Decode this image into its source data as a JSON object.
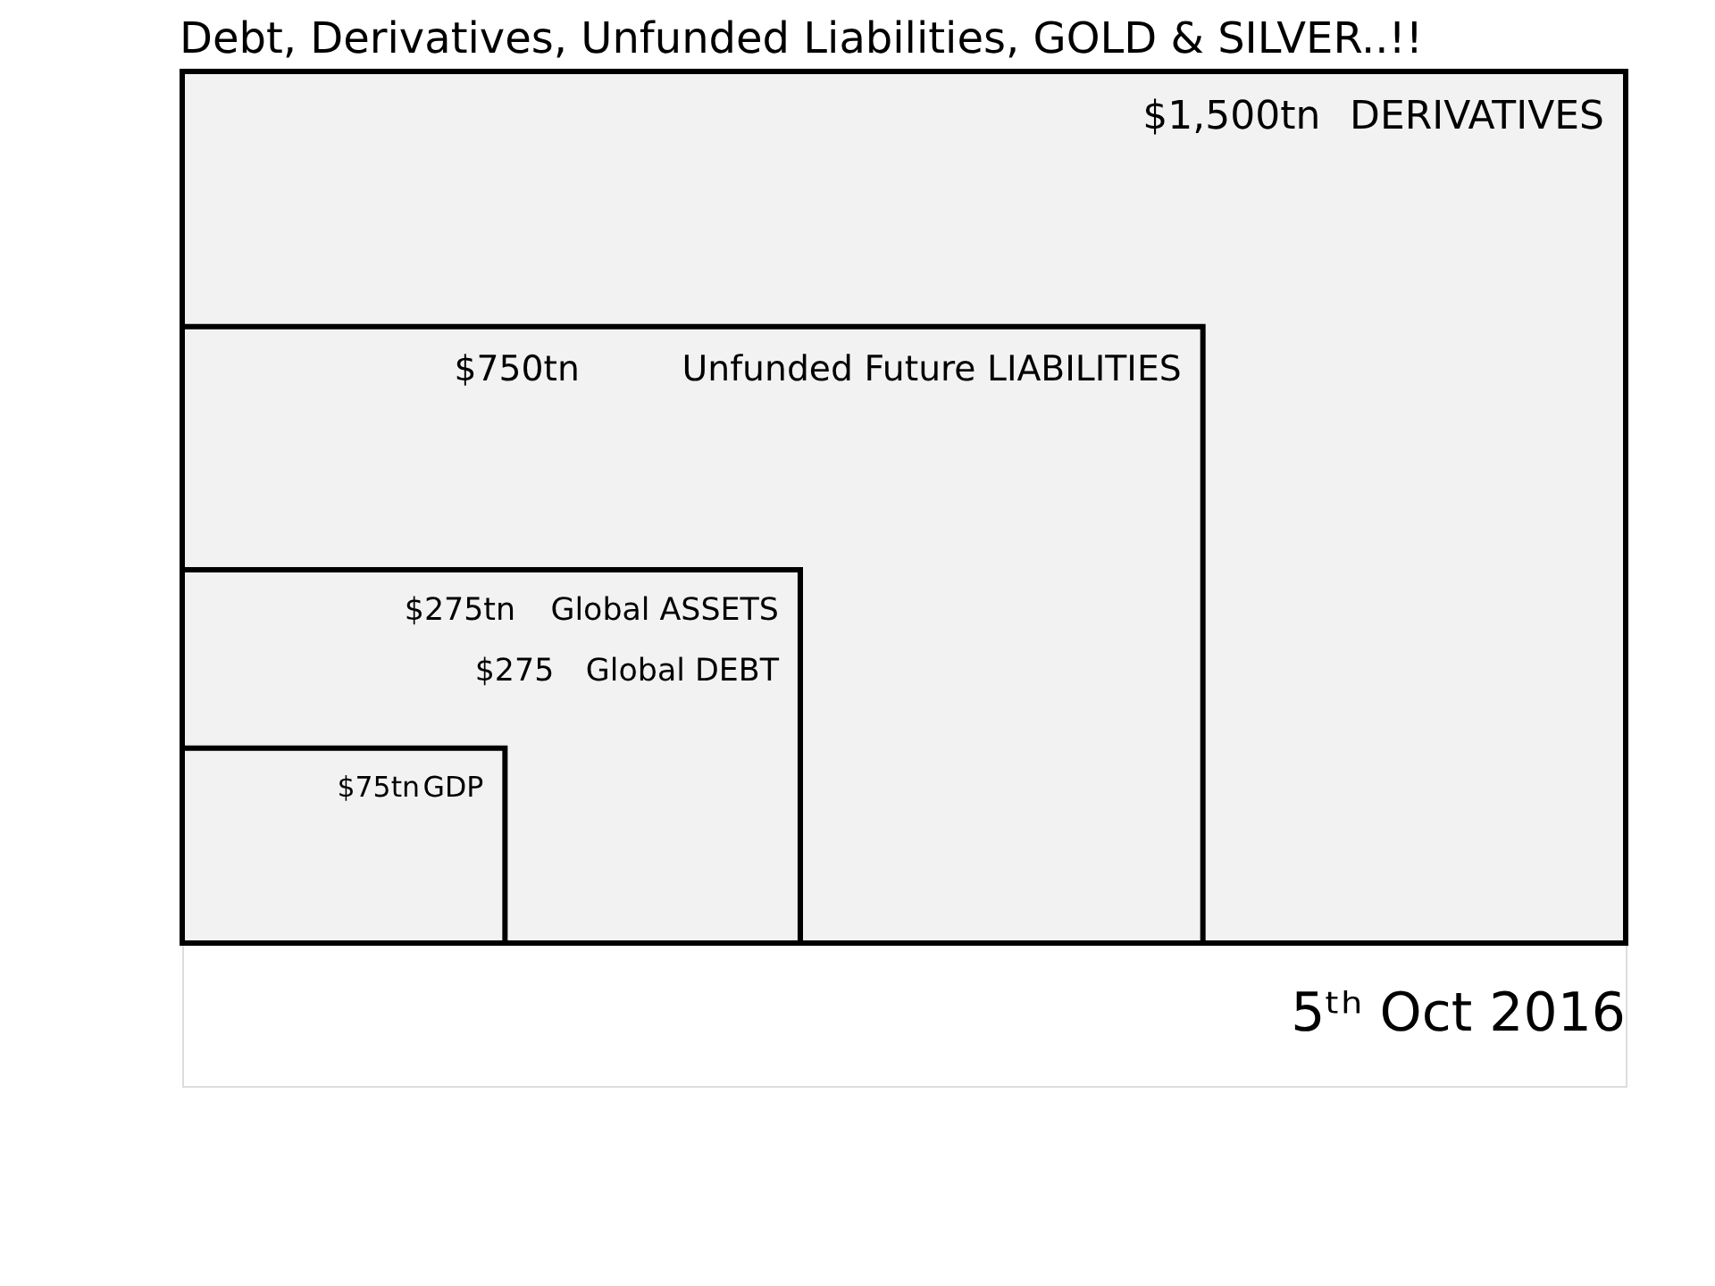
{
  "chart_data": {
    "type": "other",
    "title": "Debt, Derivatives, Unfunded Liabilities, GOLD & SILVER..!!",
    "categories": [
      "DERIVATIVES",
      "Unfunded Future LIABILITIES",
      "Global ASSETS",
      "Global DEBT",
      "GDP"
    ],
    "values": [
      1500,
      750,
      275,
      275,
      75
    ],
    "value_labels": [
      "$1,500tn",
      "$750tn",
      "$275tn",
      "$275",
      "$75tn"
    ],
    "colors": [
      "#f2f2f2",
      "#f2f2f2",
      "#f2f2f2",
      "#f2f2f2",
      "#f2f2f2"
    ],
    "annotations": [
      "5ᵗʰ Oct 2016"
    ]
  }
}
